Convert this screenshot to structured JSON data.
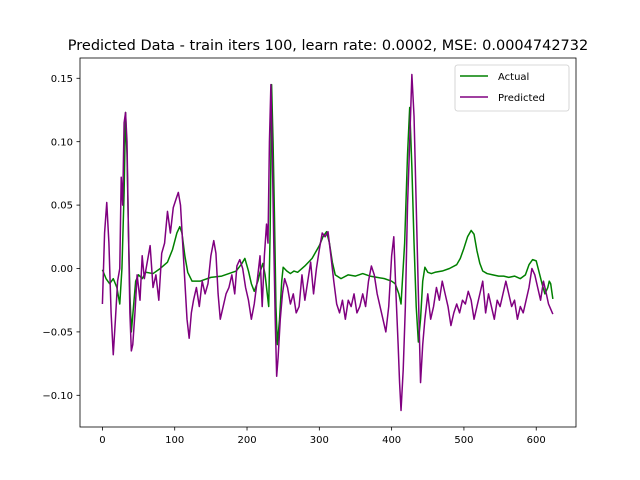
{
  "chart_data": {
    "type": "line",
    "title": "Predicted Data - train iters 100, learn rate: 0.0002, MSE: 0.0004742732",
    "xlabel": "",
    "ylabel": "",
    "xlim": [
      -31,
      655
    ],
    "ylim": [
      -0.125,
      0.166
    ],
    "xticks": [
      0,
      100,
      200,
      300,
      400,
      500,
      600
    ],
    "xtick_labels": [
      "0",
      "100",
      "200",
      "300",
      "400",
      "500",
      "600"
    ],
    "yticks": [
      -0.1,
      -0.05,
      0.0,
      0.05,
      0.1,
      0.15
    ],
    "ytick_labels": [
      "−0.10",
      "−0.05",
      "0.00",
      "0.05",
      "0.10",
      "0.15"
    ],
    "grid": false,
    "legend_position": "upper-right",
    "series": [
      {
        "name": "Actual",
        "color": "#008000",
        "points": [
          [
            0,
            -0.001
          ],
          [
            5,
            -0.008
          ],
          [
            10,
            -0.012
          ],
          [
            15,
            -0.008
          ],
          [
            20,
            -0.015
          ],
          [
            24,
            -0.028
          ],
          [
            27,
            0.0
          ],
          [
            30,
            0.06
          ],
          [
            32,
            0.123
          ],
          [
            34,
            0.09
          ],
          [
            36,
            0.03
          ],
          [
            38,
            -0.02
          ],
          [
            40,
            -0.05
          ],
          [
            43,
            -0.03
          ],
          [
            46,
            -0.01
          ],
          [
            50,
            -0.005
          ],
          [
            55,
            -0.008
          ],
          [
            60,
            -0.003
          ],
          [
            70,
            -0.004
          ],
          [
            80,
            0.0
          ],
          [
            90,
            0.005
          ],
          [
            97,
            0.015
          ],
          [
            103,
            0.028
          ],
          [
            107,
            0.033
          ],
          [
            110,
            0.028
          ],
          [
            114,
            0.01
          ],
          [
            118,
            -0.003
          ],
          [
            124,
            -0.01
          ],
          [
            135,
            -0.01
          ],
          [
            150,
            -0.007
          ],
          [
            165,
            -0.006
          ],
          [
            175,
            -0.004
          ],
          [
            185,
            -0.002
          ],
          [
            193,
            0.004
          ],
          [
            197,
            0.008
          ],
          [
            202,
            -0.002
          ],
          [
            206,
            -0.012
          ],
          [
            210,
            -0.018
          ],
          [
            215,
            -0.01
          ],
          [
            218,
            -0.003
          ],
          [
            222,
            0.004
          ],
          [
            225,
            -0.005
          ],
          [
            228,
            -0.02
          ],
          [
            230,
            -0.03
          ],
          [
            232,
            0.03
          ],
          [
            234,
            0.145
          ],
          [
            236,
            0.1
          ],
          [
            238,
            0.04
          ],
          [
            240,
            -0.03
          ],
          [
            242,
            -0.06
          ],
          [
            245,
            -0.04
          ],
          [
            248,
            -0.01
          ],
          [
            250,
            0.001
          ],
          [
            255,
            -0.002
          ],
          [
            260,
            -0.004
          ],
          [
            265,
            -0.002
          ],
          [
            270,
            -0.003
          ],
          [
            280,
            0.002
          ],
          [
            290,
            0.008
          ],
          [
            300,
            0.018
          ],
          [
            305,
            0.025
          ],
          [
            310,
            0.029
          ],
          [
            314,
            0.02
          ],
          [
            318,
            0.005
          ],
          [
            322,
            -0.005
          ],
          [
            330,
            -0.008
          ],
          [
            340,
            -0.005
          ],
          [
            350,
            -0.006
          ],
          [
            360,
            -0.004
          ],
          [
            370,
            -0.006
          ],
          [
            380,
            -0.007
          ],
          [
            390,
            -0.008
          ],
          [
            400,
            -0.01
          ],
          [
            405,
            -0.012
          ],
          [
            410,
            -0.02
          ],
          [
            413,
            -0.028
          ],
          [
            418,
            0.02
          ],
          [
            422,
            0.09
          ],
          [
            425,
            0.127
          ],
          [
            428,
            0.08
          ],
          [
            431,
            0.02
          ],
          [
            434,
            -0.03
          ],
          [
            437,
            -0.058
          ],
          [
            440,
            -0.04
          ],
          [
            443,
            -0.01
          ],
          [
            446,
            0.001
          ],
          [
            450,
            -0.003
          ],
          [
            455,
            -0.004
          ],
          [
            460,
            -0.003
          ],
          [
            470,
            -0.002
          ],
          [
            480,
            0.0
          ],
          [
            490,
            0.003
          ],
          [
            495,
            0.008
          ],
          [
            500,
            0.016
          ],
          [
            505,
            0.025
          ],
          [
            510,
            0.03
          ],
          [
            514,
            0.027
          ],
          [
            518,
            0.014
          ],
          [
            522,
            0.004
          ],
          [
            526,
            -0.002
          ],
          [
            532,
            -0.004
          ],
          [
            540,
            -0.005
          ],
          [
            548,
            -0.006
          ],
          [
            555,
            -0.006
          ],
          [
            562,
            -0.007
          ],
          [
            570,
            -0.006
          ],
          [
            578,
            -0.008
          ],
          [
            585,
            -0.005
          ],
          [
            590,
            0.003
          ],
          [
            595,
            0.007
          ],
          [
            600,
            0.006
          ],
          [
            604,
            -0.003
          ],
          [
            608,
            -0.012
          ],
          [
            612,
            -0.02
          ],
          [
            616,
            -0.015
          ],
          [
            618,
            -0.01
          ],
          [
            620,
            -0.012
          ],
          [
            623,
            -0.024
          ]
        ]
      },
      {
        "name": "Predicted",
        "color": "#800080",
        "points": [
          [
            0,
            -0.028
          ],
          [
            3,
            0.028
          ],
          [
            6,
            0.052
          ],
          [
            9,
            0.02
          ],
          [
            12,
            -0.035
          ],
          [
            15,
            -0.068
          ],
          [
            18,
            -0.04
          ],
          [
            21,
            -0.01
          ],
          [
            24,
            0.0
          ],
          [
            26,
            0.072
          ],
          [
            28,
            0.05
          ],
          [
            30,
            0.115
          ],
          [
            32,
            0.123
          ],
          [
            34,
            0.1
          ],
          [
            36,
            0.03
          ],
          [
            38,
            -0.035
          ],
          [
            40,
            -0.065
          ],
          [
            42,
            -0.06
          ],
          [
            45,
            -0.035
          ],
          [
            48,
            -0.005
          ],
          [
            52,
            -0.025
          ],
          [
            55,
            0.01
          ],
          [
            58,
            -0.008
          ],
          [
            62,
            0.005
          ],
          [
            66,
            0.018
          ],
          [
            70,
            -0.015
          ],
          [
            74,
            -0.005
          ],
          [
            78,
            -0.025
          ],
          [
            82,
            0.012
          ],
          [
            86,
            0.02
          ],
          [
            90,
            0.045
          ],
          [
            94,
            0.028
          ],
          [
            98,
            0.048
          ],
          [
            102,
            0.055
          ],
          [
            105,
            0.06
          ],
          [
            108,
            0.05
          ],
          [
            111,
            0.02
          ],
          [
            114,
            -0.01
          ],
          [
            117,
            -0.04
          ],
          [
            120,
            -0.055
          ],
          [
            123,
            -0.035
          ],
          [
            126,
            -0.025
          ],
          [
            130,
            -0.015
          ],
          [
            134,
            -0.03
          ],
          [
            138,
            -0.01
          ],
          [
            142,
            -0.02
          ],
          [
            146,
            -0.012
          ],
          [
            150,
            0.01
          ],
          [
            154,
            0.022
          ],
          [
            157,
            0.012
          ],
          [
            160,
            -0.02
          ],
          [
            163,
            -0.04
          ],
          [
            167,
            -0.03
          ],
          [
            171,
            -0.02
          ],
          [
            175,
            -0.015
          ],
          [
            179,
            -0.005
          ],
          [
            183,
            -0.02
          ],
          [
            186,
            0.002
          ],
          [
            190,
            0.007
          ],
          [
            194,
            0.0
          ],
          [
            198,
            -0.015
          ],
          [
            202,
            -0.025
          ],
          [
            206,
            -0.04
          ],
          [
            210,
            -0.028
          ],
          [
            214,
            -0.01
          ],
          [
            218,
            0.01
          ],
          [
            221,
            -0.03
          ],
          [
            224,
            0.01
          ],
          [
            227,
            0.035
          ],
          [
            229,
            0.02
          ],
          [
            231,
            0.1
          ],
          [
            233,
            0.145
          ],
          [
            235,
            0.09
          ],
          [
            237,
            0.02
          ],
          [
            239,
            -0.04
          ],
          [
            241,
            -0.085
          ],
          [
            243,
            -0.07
          ],
          [
            246,
            -0.04
          ],
          [
            249,
            -0.02
          ],
          [
            252,
            -0.008
          ],
          [
            256,
            -0.015
          ],
          [
            260,
            -0.028
          ],
          [
            264,
            -0.02
          ],
          [
            268,
            -0.035
          ],
          [
            272,
            -0.03
          ],
          [
            276,
            -0.005
          ],
          [
            280,
            -0.025
          ],
          [
            284,
            -0.01
          ],
          [
            288,
            0.005
          ],
          [
            292,
            -0.02
          ],
          [
            296,
            0.0
          ],
          [
            300,
            0.015
          ],
          [
            304,
            0.028
          ],
          [
            308,
            0.025
          ],
          [
            312,
            0.029
          ],
          [
            316,
            0.01
          ],
          [
            320,
            -0.01
          ],
          [
            324,
            -0.028
          ],
          [
            328,
            -0.035
          ],
          [
            332,
            -0.025
          ],
          [
            336,
            -0.04
          ],
          [
            340,
            -0.025
          ],
          [
            344,
            -0.03
          ],
          [
            348,
            -0.02
          ],
          [
            352,
            -0.035
          ],
          [
            356,
            -0.03
          ],
          [
            360,
            -0.02
          ],
          [
            364,
            -0.03
          ],
          [
            368,
            -0.01
          ],
          [
            372,
            0.002
          ],
          [
            376,
            -0.005
          ],
          [
            380,
            -0.02
          ],
          [
            384,
            -0.03
          ],
          [
            388,
            -0.04
          ],
          [
            392,
            -0.05
          ],
          [
            396,
            -0.03
          ],
          [
            400,
            0.01
          ],
          [
            403,
            0.025
          ],
          [
            406,
            -0.02
          ],
          [
            409,
            -0.06
          ],
          [
            411,
            -0.09
          ],
          [
            413,
            -0.112
          ],
          [
            416,
            -0.08
          ],
          [
            419,
            -0.03
          ],
          [
            422,
            0.05
          ],
          [
            425,
            0.1
          ],
          [
            428,
            0.153
          ],
          [
            431,
            0.12
          ],
          [
            434,
            0.05
          ],
          [
            437,
            -0.02
          ],
          [
            440,
            -0.09
          ],
          [
            443,
            -0.06
          ],
          [
            446,
            -0.04
          ],
          [
            450,
            -0.02
          ],
          [
            454,
            -0.04
          ],
          [
            458,
            -0.03
          ],
          [
            462,
            -0.015
          ],
          [
            466,
            -0.025
          ],
          [
            470,
            -0.01
          ],
          [
            474,
            -0.02
          ],
          [
            478,
            -0.03
          ],
          [
            482,
            -0.045
          ],
          [
            486,
            -0.035
          ],
          [
            490,
            -0.028
          ],
          [
            494,
            -0.035
          ],
          [
            498,
            -0.025
          ],
          [
            502,
            -0.028
          ],
          [
            506,
            -0.018
          ],
          [
            510,
            -0.025
          ],
          [
            514,
            -0.04
          ],
          [
            518,
            -0.03
          ],
          [
            522,
            -0.02
          ],
          [
            526,
            -0.01
          ],
          [
            530,
            -0.035
          ],
          [
            534,
            -0.02
          ],
          [
            538,
            -0.03
          ],
          [
            542,
            -0.04
          ],
          [
            546,
            -0.025
          ],
          [
            550,
            -0.03
          ],
          [
            554,
            -0.02
          ],
          [
            558,
            -0.01
          ],
          [
            562,
            -0.02
          ],
          [
            566,
            -0.03
          ],
          [
            570,
            -0.025
          ],
          [
            574,
            -0.04
          ],
          [
            578,
            -0.03
          ],
          [
            582,
            -0.035
          ],
          [
            586,
            -0.025
          ],
          [
            590,
            -0.015
          ],
          [
            594,
            0.0
          ],
          [
            598,
            -0.005
          ],
          [
            602,
            -0.015
          ],
          [
            606,
            -0.025
          ],
          [
            610,
            -0.01
          ],
          [
            614,
            -0.02
          ],
          [
            617,
            -0.028
          ],
          [
            620,
            -0.032
          ],
          [
            623,
            -0.036
          ]
        ]
      }
    ]
  }
}
